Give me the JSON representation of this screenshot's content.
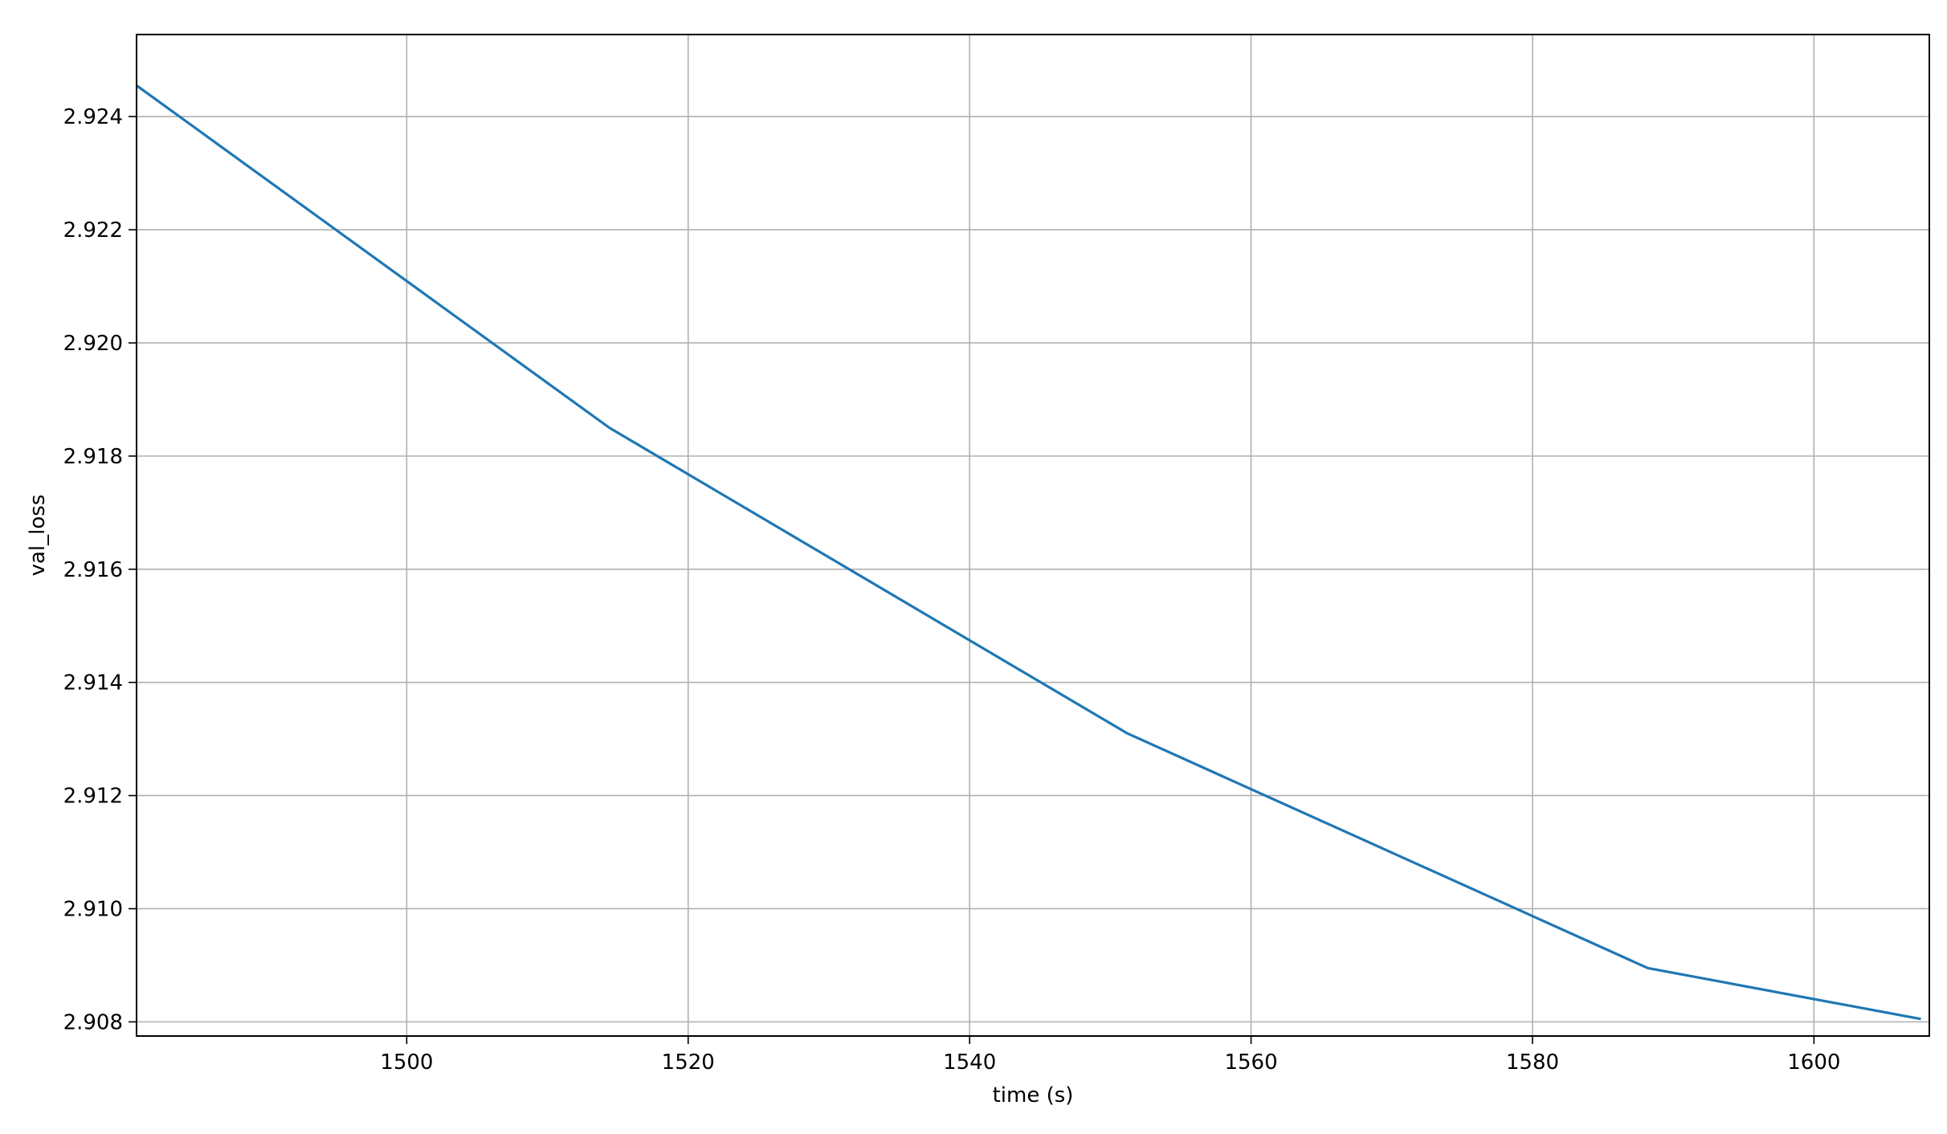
{
  "chart_data": {
    "type": "line",
    "title": "",
    "xlabel": "time (s)",
    "ylabel": "val_loss",
    "xlim": [
      1480.8,
      1608.2
    ],
    "ylim": [
      2.90775,
      2.92545
    ],
    "grid": true,
    "xticks": [
      1500,
      1520,
      1540,
      1560,
      1580,
      1600
    ],
    "xtick_labels": [
      "1500",
      "1520",
      "1540",
      "1560",
      "1580",
      "1600"
    ],
    "yticks": [
      2.908,
      2.91,
      2.912,
      2.914,
      2.916,
      2.918,
      2.92,
      2.922,
      2.924
    ],
    "ytick_labels": [
      "2.908",
      "2.910",
      "2.912",
      "2.914",
      "2.916",
      "2.918",
      "2.920",
      "2.922",
      "2.924"
    ],
    "series": [
      {
        "color": "#1f77b4",
        "x": [
          1480.8,
          1514.4,
          1551.2,
          1588.2,
          1607.6
        ],
        "y": [
          2.92455,
          2.9185,
          2.9131,
          2.90895,
          2.90805
        ]
      }
    ]
  }
}
